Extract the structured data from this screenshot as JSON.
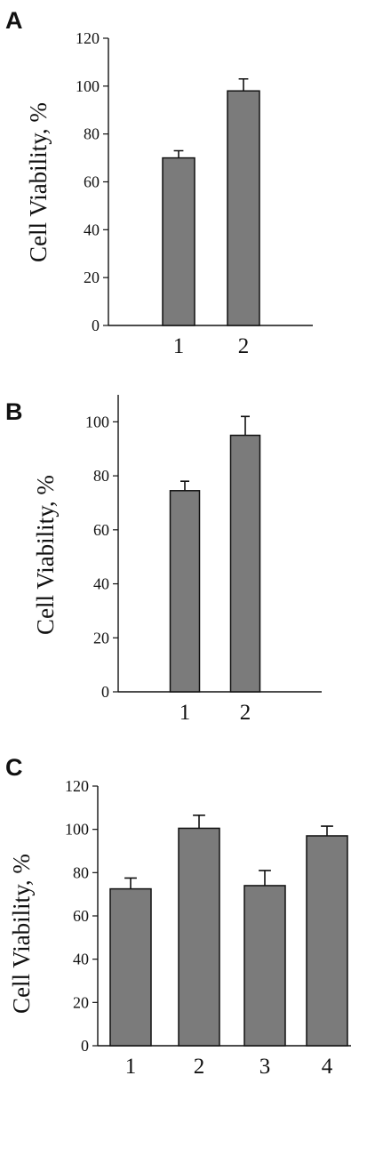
{
  "colors": {
    "bar_fill": "#7b7b7b",
    "axis": "#111111",
    "background": "#ffffff"
  },
  "chart_data": [
    {
      "panel": "A",
      "type": "bar",
      "ylabel": "Cell Viability, %",
      "xlabel": "",
      "ylim": [
        0,
        120
      ],
      "yticks": [
        0,
        20,
        40,
        60,
        80,
        100,
        120
      ],
      "categories": [
        "1",
        "2"
      ],
      "values": [
        70,
        98
      ],
      "errors": [
        3,
        5
      ],
      "grid": false,
      "legend": "none"
    },
    {
      "panel": "B",
      "type": "bar",
      "ylabel": "Cell Viability, %",
      "xlabel": "",
      "ylim": [
        0,
        110
      ],
      "yticks": [
        0,
        20,
        40,
        60,
        80,
        100
      ],
      "categories": [
        "1",
        "2"
      ],
      "values": [
        74.5,
        95
      ],
      "errors": [
        3.5,
        7
      ],
      "grid": false,
      "legend": "none"
    },
    {
      "panel": "C",
      "type": "bar",
      "ylabel": "Cell Viability, %",
      "xlabel": "",
      "ylim": [
        0,
        120
      ],
      "yticks": [
        0,
        20,
        40,
        60,
        80,
        100,
        120
      ],
      "categories": [
        "1",
        "2",
        "3",
        "4"
      ],
      "values": [
        72.5,
        100.5,
        74,
        97
      ],
      "errors": [
        5,
        6,
        7,
        4.5
      ],
      "grid": false,
      "legend": "none"
    }
  ]
}
